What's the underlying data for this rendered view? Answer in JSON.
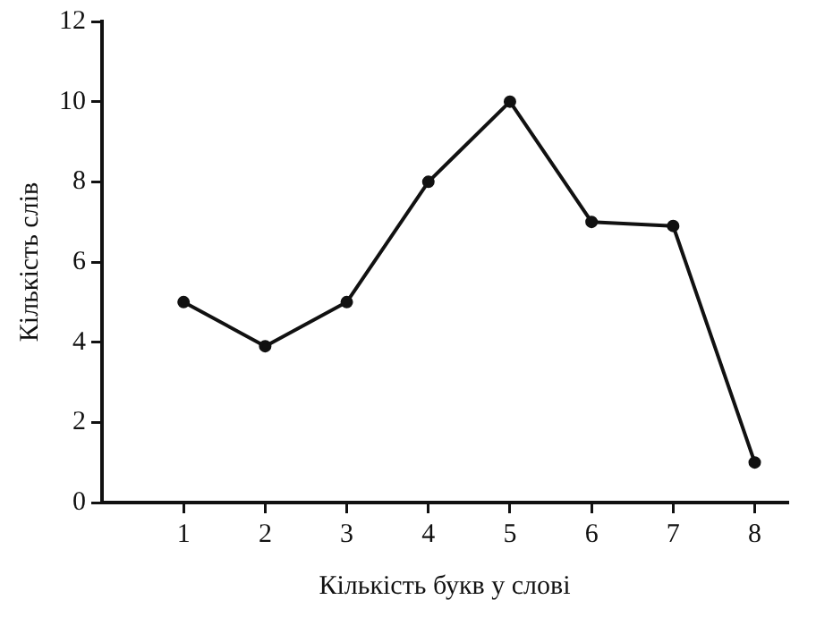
{
  "chart_data": {
    "type": "line",
    "xlabel": "Кількість букв у слові",
    "ylabel": "Кількість слів",
    "x": [
      1,
      2,
      3,
      4,
      5,
      6,
      7,
      8
    ],
    "values": [
      5,
      3.9,
      5,
      8,
      10,
      7,
      6.9,
      1
    ],
    "color": "#111111",
    "xlim": [
      0,
      8.4
    ],
    "xticks": [
      1,
      2,
      3,
      4,
      5,
      6,
      7,
      8
    ],
    "ylim": [
      0,
      12
    ],
    "yticks": [
      0,
      2,
      4,
      6,
      8,
      10,
      12
    ],
    "marker": "circle",
    "line_style": "solid",
    "grid": false,
    "legend": false
  }
}
